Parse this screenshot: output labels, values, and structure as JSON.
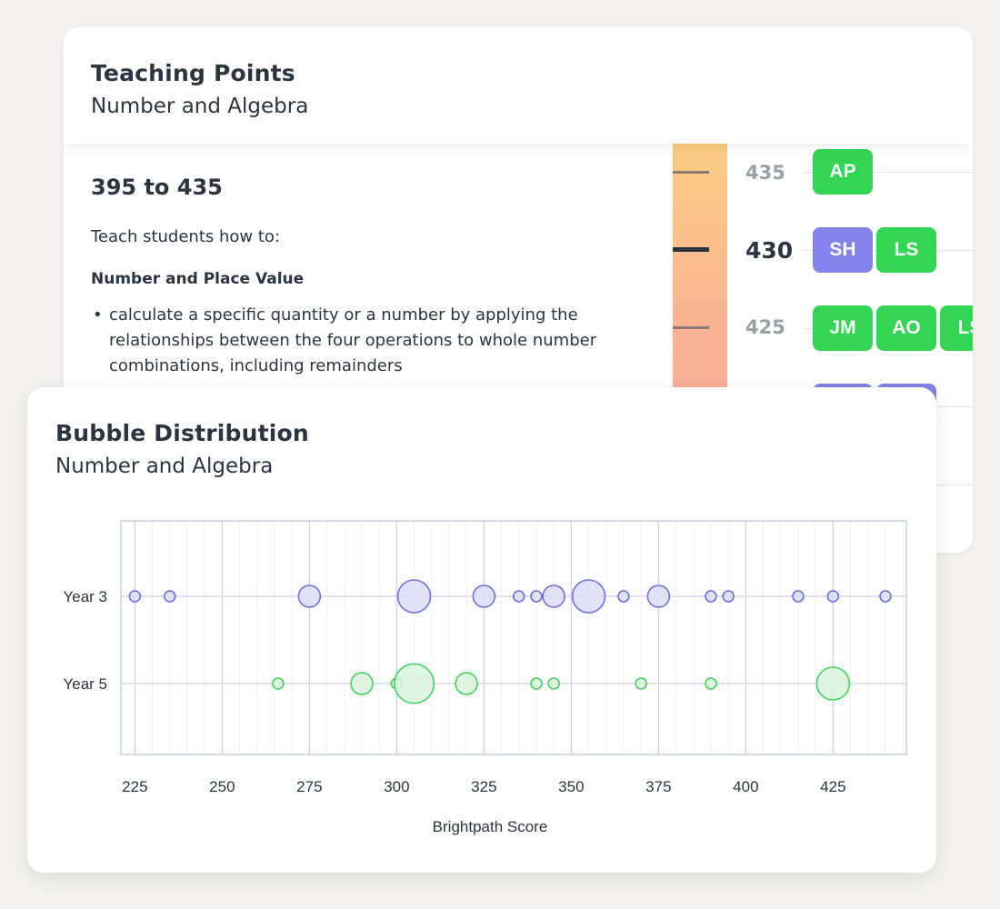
{
  "teaching_points": {
    "title": "Teaching Points",
    "subtitle": "Number and Algebra",
    "range": "395 to 435",
    "intro": "Teach students how to:",
    "section": "Number and Place Value",
    "bullet_marker": "•",
    "bullet": "calculate a specific quantity or a number by applying the relationships between the four operations to whole number combinations, including remainders",
    "scale_rows": [
      {
        "score": "435",
        "current": false,
        "badges": [
          {
            "label": "AP",
            "color": "green"
          }
        ]
      },
      {
        "score": "430",
        "current": true,
        "badges": [
          {
            "label": "SH",
            "color": "purple"
          },
          {
            "label": "LS",
            "color": "green"
          }
        ]
      },
      {
        "score": "425",
        "current": false,
        "badges": [
          {
            "label": "JM",
            "color": "green"
          },
          {
            "label": "AO",
            "color": "green"
          },
          {
            "label": "LS",
            "color": "green"
          }
        ]
      },
      {
        "score": "",
        "current": false,
        "badges": [
          {
            "label": "",
            "color": "purple"
          },
          {
            "label": "",
            "color": "purple"
          }
        ]
      }
    ],
    "colors": {
      "green": "#34d554",
      "purple": "#8383ea"
    }
  },
  "bubble_distribution": {
    "title": "Bubble Distribution",
    "subtitle": "Number and Algebra"
  },
  "chart_data": {
    "type": "scatter",
    "title": "Bubble Distribution",
    "subtitle": "Number and Algebra",
    "xlabel": "Brightpath Score",
    "ylabel": "",
    "xlim": [
      221,
      446
    ],
    "xticks": [
      225,
      250,
      275,
      300,
      325,
      350,
      375,
      400,
      425
    ],
    "categories": [
      "Year 3",
      "Year 5"
    ],
    "grid": true,
    "series": [
      {
        "category": "Year 3",
        "color": "#6f6fe0",
        "fill": "#dcdcf7",
        "points": [
          {
            "x": 225,
            "size": 1
          },
          {
            "x": 235,
            "size": 1
          },
          {
            "x": 275,
            "size": 4
          },
          {
            "x": 305,
            "size": 9
          },
          {
            "x": 325,
            "size": 4
          },
          {
            "x": 335,
            "size": 1
          },
          {
            "x": 340,
            "size": 1
          },
          {
            "x": 345,
            "size": 4
          },
          {
            "x": 355,
            "size": 9
          },
          {
            "x": 365,
            "size": 1
          },
          {
            "x": 375,
            "size": 4
          },
          {
            "x": 390,
            "size": 1
          },
          {
            "x": 395,
            "size": 1
          },
          {
            "x": 415,
            "size": 1
          },
          {
            "x": 425,
            "size": 1
          },
          {
            "x": 440,
            "size": 1
          }
        ]
      },
      {
        "category": "Year 5",
        "color": "#47d35c",
        "fill": "#d8f5dc",
        "points": [
          {
            "x": 266,
            "size": 1
          },
          {
            "x": 290,
            "size": 4
          },
          {
            "x": 300,
            "size": 1
          },
          {
            "x": 305,
            "size": 13
          },
          {
            "x": 320,
            "size": 4
          },
          {
            "x": 340,
            "size": 1
          },
          {
            "x": 345,
            "size": 1
          },
          {
            "x": 370,
            "size": 1
          },
          {
            "x": 390,
            "size": 1
          },
          {
            "x": 425,
            "size": 9
          }
        ]
      }
    ]
  }
}
